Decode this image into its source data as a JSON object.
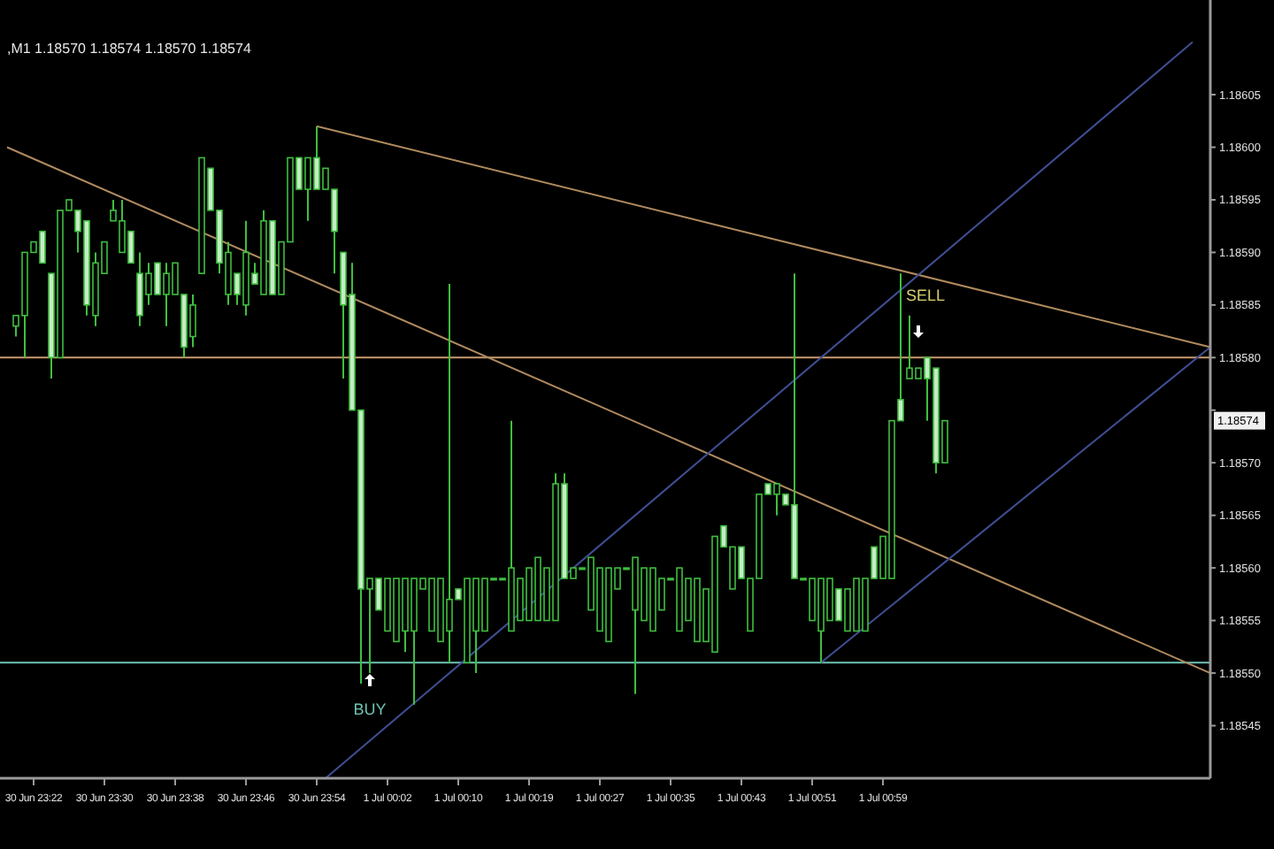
{
  "chart_data": {
    "type": "candlestick",
    "title": ",M1  1.18570 1.18574 1.18570 1.18574",
    "color": "#3fbf3f",
    "categories": [
      null,
      null,
      null,
      "30 Jun 23:22",
      null,
      null,
      null,
      null,
      null,
      null,
      null,
      "30 Jun 23:30",
      null,
      null,
      null,
      null,
      null,
      null,
      null,
      "30 Jun 23:38",
      null,
      null,
      null,
      null,
      null,
      null,
      null,
      "30 Jun 23:46",
      null,
      null,
      null,
      null,
      null,
      null,
      null,
      "30 Jun 23:54",
      null,
      null,
      null,
      null,
      null,
      null,
      null,
      "1 Jul 00:02",
      null,
      null,
      null,
      null,
      null,
      null,
      null,
      "1 Jul 00:10",
      null,
      null,
      null,
      null,
      null,
      null,
      null,
      "1 Jul 00:19",
      null,
      null,
      null,
      null,
      null,
      null,
      null,
      "1 Jul 00:27",
      null,
      null,
      null,
      null,
      null,
      null,
      null,
      "1 Jul 00:35",
      null,
      null,
      null,
      null,
      null,
      null,
      null,
      "1 Jul 00:43",
      null,
      null,
      null,
      null,
      null,
      null,
      null,
      "1 Jul 00:51",
      null,
      null,
      null,
      null,
      null,
      null,
      null,
      "1 Jul 00:59",
      null,
      null,
      null,
      null,
      null,
      null,
      null,
      null,
      null,
      null,
      null,
      null,
      null,
      null,
      null,
      null,
      null,
      null,
      null,
      null,
      null,
      null,
      null,
      null,
      null,
      null,
      null,
      null,
      null,
      null,
      null,
      null,
      null,
      null,
      null,
      null,
      null
    ],
    "ohlc": [
      null,
      [
        1.18583,
        1.18584,
        1.18582,
        1.18584
      ],
      [
        1.18584,
        1.1859,
        1.1858,
        1.1859
      ],
      [
        1.1859,
        1.18591,
        1.1859,
        1.18591
      ],
      [
        1.18592,
        1.18592,
        1.18589,
        1.18589
      ],
      [
        1.18588,
        1.18588,
        1.18578,
        1.1858
      ],
      [
        1.1858,
        1.18594,
        1.1858,
        1.18594
      ],
      [
        1.18594,
        1.18595,
        1.18594,
        1.18595
      ],
      [
        1.18594,
        1.18594,
        1.1859,
        1.18592
      ],
      [
        1.18593,
        1.18593,
        1.18584,
        1.18585
      ],
      [
        1.18584,
        1.1859,
        1.18583,
        1.18589
      ],
      [
        1.18588,
        1.18591,
        1.18588,
        1.18591
      ],
      [
        1.18593,
        1.18595,
        1.18593,
        1.18594
      ],
      [
        1.1859,
        1.18595,
        1.1859,
        1.18593
      ],
      [
        1.18592,
        1.18592,
        1.18589,
        1.18589
      ],
      [
        1.18588,
        1.1859,
        1.18583,
        1.18584
      ],
      [
        1.18586,
        1.18589,
        1.18585,
        1.18588
      ],
      [
        1.18589,
        1.18589,
        1.18586,
        1.18586
      ],
      [
        1.18586,
        1.18589,
        1.18583,
        1.18588
      ],
      [
        1.18586,
        1.18589,
        1.18586,
        1.18589
      ],
      [
        1.18586,
        1.18586,
        1.1858,
        1.18581
      ],
      [
        1.18582,
        1.18586,
        1.18581,
        1.18585
      ],
      [
        1.18588,
        1.18599,
        1.18588,
        1.18599
      ],
      [
        1.18598,
        1.18598,
        1.18594,
        1.18594
      ],
      [
        1.18594,
        1.18594,
        1.18588,
        1.18589
      ],
      [
        1.18586,
        1.18591,
        1.18585,
        1.1859
      ],
      [
        1.18588,
        1.18588,
        1.18585,
        1.18586
      ],
      [
        1.18585,
        1.18593,
        1.18584,
        1.1859
      ],
      [
        1.18588,
        1.18589,
        1.18587,
        1.18587
      ],
      [
        1.18586,
        1.18594,
        1.18586,
        1.18593
      ],
      [
        1.18593,
        1.18593,
        1.18586,
        1.18586
      ],
      [
        1.18586,
        1.18591,
        1.18586,
        1.18591
      ],
      [
        1.18591,
        1.18599,
        1.18591,
        1.18599
      ],
      [
        1.18599,
        1.18599,
        1.18596,
        1.18596
      ],
      [
        1.18596,
        1.18599,
        1.18593,
        1.18599
      ],
      [
        1.18599,
        1.18602,
        1.18596,
        1.18596
      ],
      [
        1.18596,
        1.18598,
        1.18596,
        1.18598
      ],
      [
        1.18596,
        1.18596,
        1.18588,
        1.18592
      ],
      [
        1.1859,
        1.1859,
        1.18578,
        1.18585
      ],
      [
        1.18586,
        1.18589,
        1.18575,
        1.18575
      ],
      [
        1.18575,
        1.18575,
        1.18549,
        1.18558
      ],
      [
        1.18558,
        1.18559,
        1.1855,
        1.18559
      ],
      [
        1.18559,
        1.18559,
        1.18556,
        1.18556
      ],
      [
        1.18554,
        1.18559,
        1.18554,
        1.18559
      ],
      [
        1.18553,
        1.18559,
        1.18553,
        1.18559
      ],
      [
        1.18554,
        1.18559,
        1.18552,
        1.18559
      ],
      [
        1.18554,
        1.18559,
        1.18547,
        1.18559
      ],
      [
        1.18558,
        1.18559,
        1.18558,
        1.18559
      ],
      [
        1.18554,
        1.18559,
        1.18554,
        1.18559
      ],
      [
        1.18553,
        1.18559,
        1.18553,
        1.18559
      ],
      [
        1.18554,
        1.18587,
        1.18551,
        1.18557
      ],
      [
        1.18558,
        1.18558,
        1.18557,
        1.18557
      ],
      [
        1.18551,
        1.18559,
        1.18551,
        1.18559
      ],
      [
        1.18554,
        1.18559,
        1.1855,
        1.18559
      ],
      [
        1.18554,
        1.18559,
        1.18554,
        1.18559
      ],
      [
        1.18559,
        1.18559,
        1.18559,
        1.18559
      ],
      [
        1.18559,
        1.18559,
        1.18559,
        1.18559
      ],
      [
        1.18554,
        1.18574,
        1.18554,
        1.1856
      ],
      [
        1.18555,
        1.18559,
        1.18555,
        1.18559
      ],
      [
        1.18555,
        1.1856,
        1.18555,
        1.1856
      ],
      [
        1.18555,
        1.18561,
        1.18555,
        1.18561
      ],
      [
        1.18555,
        1.1856,
        1.18555,
        1.1856
      ],
      [
        1.18555,
        1.18569,
        1.18555,
        1.18568
      ],
      [
        1.18568,
        1.18569,
        1.18559,
        1.18559
      ],
      [
        1.18559,
        1.1856,
        1.18559,
        1.1856
      ],
      [
        1.1856,
        1.1856,
        1.1856,
        1.1856
      ],
      [
        1.18556,
        1.18561,
        1.18556,
        1.18561
      ],
      [
        1.18554,
        1.1856,
        1.18554,
        1.1856
      ],
      [
        1.18553,
        1.1856,
        1.18553,
        1.1856
      ],
      [
        1.18558,
        1.1856,
        1.18558,
        1.1856
      ],
      [
        1.1856,
        1.1856,
        1.1856,
        1.1856
      ],
      [
        1.18556,
        1.18561,
        1.18548,
        1.18561
      ],
      [
        1.18555,
        1.1856,
        1.18555,
        1.1856
      ],
      [
        1.18554,
        1.1856,
        1.18554,
        1.1856
      ],
      [
        1.18556,
        1.18559,
        1.18556,
        1.18559
      ],
      [
        1.18559,
        1.18559,
        1.18559,
        1.18559
      ],
      [
        1.18554,
        1.1856,
        1.18554,
        1.1856
      ],
      [
        1.18555,
        1.18559,
        1.18555,
        1.18559
      ],
      [
        1.18553,
        1.18559,
        1.18553,
        1.18559
      ],
      [
        1.18553,
        1.18558,
        1.18553,
        1.18558
      ],
      [
        1.18552,
        1.18563,
        1.18552,
        1.18563
      ],
      [
        1.18564,
        1.18564,
        1.18562,
        1.18562
      ],
      [
        1.18558,
        1.18562,
        1.18558,
        1.18562
      ],
      [
        1.18562,
        1.18562,
        1.18559,
        1.18559
      ],
      [
        1.18554,
        1.18559,
        1.18554,
        1.18559
      ],
      [
        1.18559,
        1.18567,
        1.18559,
        1.18567
      ],
      [
        1.18568,
        1.18568,
        1.18567,
        1.18567
      ],
      [
        1.18567,
        1.18568,
        1.18565,
        1.18568
      ],
      [
        1.18567,
        1.18567,
        1.18566,
        1.18566
      ],
      [
        1.18566,
        1.18588,
        1.18559,
        1.18559
      ],
      [
        1.18559,
        1.18559,
        1.18559,
        1.18559
      ],
      [
        1.18555,
        1.18559,
        1.18555,
        1.18559
      ],
      [
        1.18554,
        1.18559,
        1.18551,
        1.18559
      ],
      [
        1.18555,
        1.18559,
        1.18555,
        1.18559
      ],
      [
        1.18558,
        1.18558,
        1.18555,
        1.18555
      ],
      [
        1.18554,
        1.18558,
        1.18554,
        1.18558
      ],
      [
        1.18554,
        1.18559,
        1.18554,
        1.18559
      ],
      [
        1.18554,
        1.18559,
        1.18554,
        1.18559
      ],
      [
        1.18562,
        1.18562,
        1.18559,
        1.18559
      ],
      [
        1.18559,
        1.18563,
        1.18559,
        1.18563
      ],
      [
        1.18559,
        1.18574,
        1.18559,
        1.18574
      ],
      [
        1.18576,
        1.18588,
        1.18574,
        1.18574
      ],
      [
        1.18578,
        1.18584,
        1.18578,
        1.18579
      ],
      [
        1.18578,
        1.18579,
        1.18578,
        1.18579
      ],
      [
        1.1858,
        1.1858,
        1.18574,
        1.18578
      ],
      [
        1.18579,
        1.18579,
        1.18569,
        1.1857
      ],
      [
        1.1857,
        1.18574,
        1.1857,
        1.18574
      ],
      null,
      null,
      null,
      null,
      null,
      null,
      null,
      null,
      null,
      null,
      null,
      null,
      null,
      null,
      null,
      null,
      null,
      null,
      null,
      null,
      null,
      null,
      null,
      null,
      null,
      null,
      null,
      null,
      null,
      null
    ],
    "ylim": [
      1.1854,
      1.18614
    ],
    "yticks": [
      1.18545,
      {
        "value": 1.1855,
        "label": "1.18550"
      },
      1.18555,
      {
        "value": 1.1856,
        "label": "1.18560"
      },
      1.18565,
      {
        "value": 1.1857,
        "label": "1.18570"
      },
      {
        "value": 1.18575,
        "label": null
      },
      {
        "value": 1.1858,
        "label": "1.18580"
      },
      1.18585,
      {
        "value": 1.1859,
        "label": "1.18590"
      },
      1.18595,
      {
        "value": 1.186,
        "label": "1.18600"
      },
      1.18605
    ],
    "series": [
      {
        "type": "line",
        "color": "#b08a5e",
        "values": [
          1.186,
          null,
          null,
          null,
          null,
          null,
          null,
          null,
          null,
          null,
          null,
          null,
          null,
          null,
          null,
          null,
          null,
          null,
          null,
          null,
          null,
          null,
          null,
          null,
          null,
          null,
          null,
          null,
          null,
          null,
          null,
          null,
          null,
          null,
          null,
          null,
          null,
          null,
          null,
          null,
          null,
          null,
          null,
          null,
          null,
          null,
          null,
          null,
          null,
          null,
          null,
          null,
          null,
          null,
          null,
          null,
          null,
          null,
          null,
          null,
          null,
          null,
          null,
          null,
          null,
          null,
          null,
          null,
          null,
          null,
          null,
          null,
          null,
          null,
          null,
          null,
          null,
          null,
          null,
          null,
          null,
          null,
          null,
          null,
          null,
          null,
          null,
          null,
          null,
          null,
          null,
          null,
          null,
          null,
          null,
          null,
          null,
          null,
          null,
          null,
          null,
          null,
          null,
          null,
          null,
          null,
          null,
          null,
          null,
          null,
          null,
          null,
          null,
          null,
          null,
          null,
          null,
          null,
          null,
          null,
          null,
          null,
          null,
          null,
          null,
          null,
          null,
          null,
          null,
          null,
          null,
          null,
          null,
          null,
          null,
          null,
          1.1855
        ]
      },
      {
        "type": "line",
        "color": "#b08a5e",
        "values": [
          null,
          null,
          null,
          null,
          null,
          null,
          null,
          null,
          null,
          null,
          null,
          null,
          null,
          null,
          null,
          null,
          null,
          null,
          null,
          null,
          null,
          null,
          null,
          null,
          null,
          null,
          null,
          null,
          null,
          null,
          null,
          null,
          null,
          null,
          null,
          1.18602,
          null,
          null,
          null,
          null,
          null,
          null,
          null,
          null,
          null,
          null,
          null,
          null,
          null,
          null,
          null,
          null,
          null,
          null,
          null,
          null,
          null,
          null,
          null,
          null,
          null,
          null,
          null,
          null,
          null,
          null,
          null,
          null,
          null,
          null,
          null,
          null,
          null,
          null,
          null,
          null,
          null,
          null,
          null,
          null,
          null,
          null,
          null,
          null,
          null,
          null,
          null,
          null,
          null,
          null,
          null,
          null,
          null,
          null,
          null,
          null,
          null,
          null,
          null,
          null,
          null,
          null,
          null,
          null,
          null,
          null,
          null,
          null,
          null,
          null,
          null,
          null,
          null,
          null,
          null,
          null,
          null,
          null,
          null,
          null,
          null,
          null,
          null,
          null,
          null,
          null,
          null,
          null,
          null,
          null,
          null,
          null,
          null,
          null,
          null,
          null,
          1.18581
        ]
      },
      {
        "type": "line",
        "color": "#3f4f94",
        "values": [
          null,
          null,
          null,
          null,
          null,
          null,
          null,
          null,
          null,
          null,
          null,
          null,
          null,
          null,
          null,
          null,
          null,
          null,
          null,
          null,
          null,
          null,
          null,
          null,
          null,
          null,
          null,
          null,
          null,
          null,
          null,
          null,
          null,
          null,
          null,
          null,
          1.1854,
          null,
          null,
          null,
          null,
          null,
          null,
          null,
          null,
          null,
          null,
          null,
          null,
          null,
          null,
          null,
          null,
          null,
          null,
          null,
          null,
          null,
          null,
          null,
          null,
          null,
          null,
          null,
          null,
          null,
          null,
          null,
          null,
          null,
          null,
          null,
          null,
          null,
          null,
          null,
          null,
          null,
          null,
          null,
          null,
          null,
          null,
          null,
          null,
          null,
          null,
          null,
          null,
          null,
          null,
          null,
          null,
          null,
          null,
          null,
          null,
          null,
          null,
          null,
          null,
          null,
          null,
          null,
          null,
          null,
          null,
          null,
          null,
          null,
          null,
          null,
          null,
          null,
          null,
          null,
          null,
          null,
          null,
          null,
          null,
          null,
          null,
          null,
          null,
          null,
          null,
          null,
          null,
          null,
          null,
          null,
          null,
          null,
          1.1861,
          null,
          null
        ]
      },
      {
        "type": "line",
        "color": "#3f4f94",
        "values": [
          null,
          null,
          null,
          null,
          null,
          null,
          null,
          null,
          null,
          null,
          null,
          null,
          null,
          null,
          null,
          null,
          null,
          null,
          null,
          null,
          null,
          null,
          null,
          null,
          null,
          null,
          null,
          null,
          null,
          null,
          null,
          null,
          null,
          null,
          null,
          null,
          null,
          null,
          null,
          null,
          null,
          null,
          null,
          null,
          null,
          null,
          null,
          null,
          null,
          null,
          null,
          null,
          null,
          null,
          null,
          null,
          null,
          null,
          null,
          null,
          null,
          null,
          null,
          null,
          null,
          null,
          null,
          null,
          null,
          null,
          null,
          null,
          null,
          null,
          null,
          null,
          null,
          null,
          null,
          null,
          null,
          null,
          null,
          null,
          null,
          null,
          null,
          null,
          null,
          null,
          null,
          null,
          1.18551,
          null,
          null,
          null,
          null,
          null,
          null,
          null,
          null,
          null,
          null,
          null,
          null,
          null,
          null,
          null,
          null,
          null,
          null,
          null,
          null,
          null,
          null,
          null,
          null,
          null,
          null,
          null,
          null,
          null,
          null,
          null,
          null,
          null,
          null,
          null,
          null,
          null,
          null,
          null,
          null,
          null,
          null,
          null,
          1.18581
        ]
      }
    ],
    "ref_lines": [
      {
        "axis": "y",
        "value": 1.1858,
        "color": "#c89a70"
      },
      {
        "axis": "y",
        "value": 1.18551,
        "color": "#6fc3b3"
      }
    ],
    "annotations": [
      {
        "text": "1.18574",
        "y": 1.18574
      },
      "BUY",
      "SELL"
    ]
  }
}
